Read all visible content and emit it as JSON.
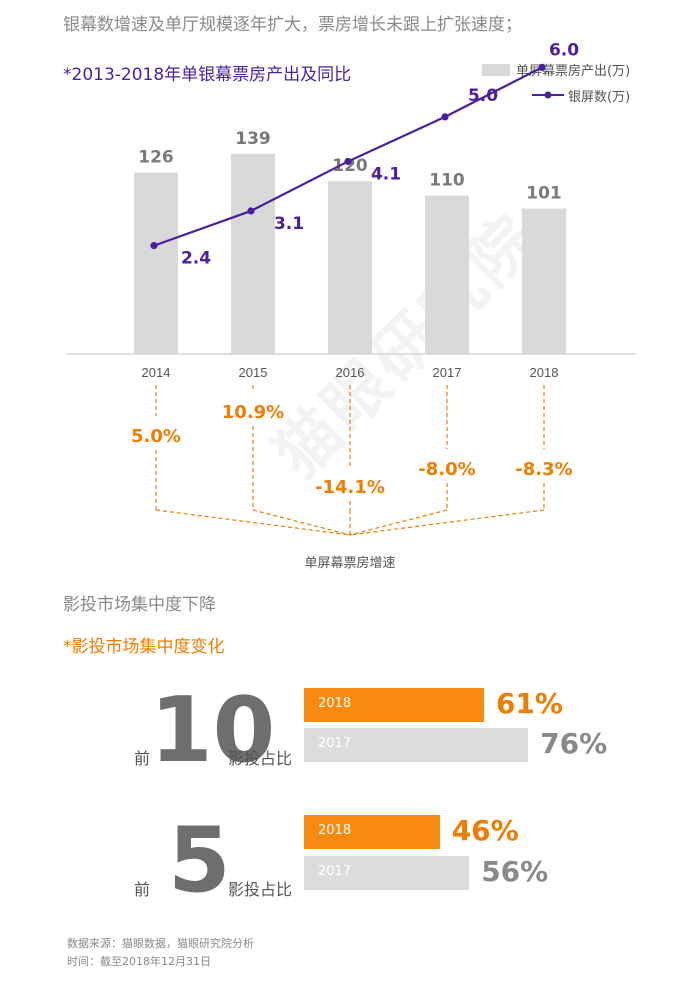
{
  "headline": "银幕数增速及单厅规模逐年扩大，票房增长未跟上扩张速度；",
  "chart_subtitle": "*2013-2018年单银幕票房产出及同比",
  "legend": {
    "bar_label": "单屏幕票房产出(万)",
    "line_label": "银屏数(万)"
  },
  "colors": {
    "bar": "#d9d9d9",
    "line": "#4b1fa0",
    "growth": "#f07d00",
    "orange_bar": "#f88a12",
    "grey_bar": "#dcdcdc",
    "number_grey": "#6e6e6e"
  },
  "chart_data": {
    "type": "bar",
    "categories": [
      "2014",
      "2015",
      "2016",
      "2017",
      "2018"
    ],
    "series": [
      {
        "name": "单屏幕票房产出(万)",
        "type": "bar",
        "values": [
          126,
          139,
          120,
          110,
          101
        ]
      },
      {
        "name": "银屏数(万)",
        "type": "line",
        "values": [
          2.4,
          3.1,
          4.1,
          5.0,
          6.0
        ]
      }
    ],
    "growth": {
      "label": "单屏幕票房增速",
      "values": [
        "5.0%",
        "10.9%",
        "-14.1%",
        "-8.0%",
        "-8.3%"
      ]
    }
  },
  "concentration": {
    "title": "影投市场集中度下降",
    "subtitle": "*影投市场集中度变化",
    "chart_data": {
      "type": "bar",
      "groups": [
        {
          "prefix": "前",
          "rank": "10",
          "suffix": "影投占比",
          "bars": [
            {
              "year": "2018",
              "value": 61,
              "label": "61%"
            },
            {
              "year": "2017",
              "value": 76,
              "label": "76%"
            }
          ]
        },
        {
          "prefix": "前",
          "rank": "5",
          "suffix": "影投占比",
          "bars": [
            {
              "year": "2018",
              "value": 46,
              "label": "46%"
            },
            {
              "year": "2017",
              "value": 56,
              "label": "56%"
            }
          ]
        }
      ]
    }
  },
  "source": {
    "line1": "数据来源：猫眼数据，猫眼研究院分析",
    "line2": "时间：截至2018年12月31日"
  },
  "watermark": "猫眼研究院"
}
